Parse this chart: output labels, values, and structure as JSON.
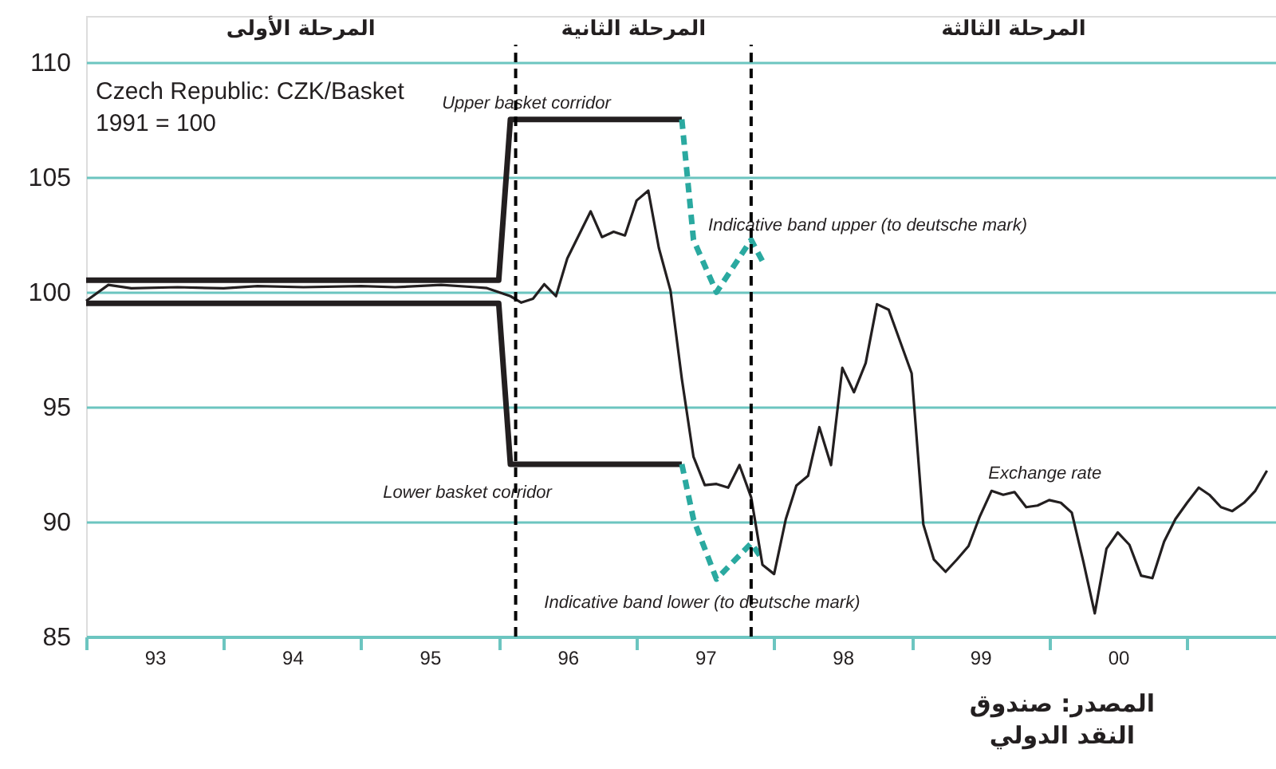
{
  "chart_data": {
    "type": "line",
    "xlim": [
      "1993-01-01",
      "2001-08-25"
    ],
    "ylim": [
      85,
      112
    ],
    "xticks": [
      {
        "value": "1993-01-01",
        "label": null
      },
      {
        "value": "1993-07-02",
        "label": "93"
      },
      {
        "value": "1994-01-01",
        "label": null
      },
      {
        "value": "1994-07-02",
        "label": "94"
      },
      {
        "value": "1995-01-01",
        "label": null
      },
      {
        "value": "1995-07-02",
        "label": "95"
      },
      {
        "value": "1996-01-01",
        "label": null
      },
      {
        "value": "1996-07-02",
        "label": "96"
      },
      {
        "value": "1997-01-01",
        "label": null
      },
      {
        "value": "1997-07-02",
        "label": "97"
      },
      {
        "value": "1998-01-01",
        "label": null
      },
      {
        "value": "1998-07-02",
        "label": "98"
      },
      {
        "value": "1999-01-01",
        "label": null
      },
      {
        "value": "1999-07-02",
        "label": "99"
      },
      {
        "value": "2000-01-01",
        "label": null
      },
      {
        "value": "2000-07-02",
        "label": "00"
      },
      {
        "value": "2001-01-01",
        "label": null
      }
    ],
    "yticks": [
      85,
      90,
      95,
      100,
      105,
      110
    ],
    "grid": "y",
    "marker": "none",
    "series": [
      {
        "name": "Upper basket corridor",
        "color": "#231f20",
        "line_style": "solid",
        "x": [
          "1993-01",
          "1996-01",
          "1996-02",
          "1997-05"
        ],
        "values": [
          100.5,
          100.5,
          107.5,
          107.5
        ]
      },
      {
        "name": "Lower basket corridor",
        "color": "#231f20",
        "line_style": "solid",
        "x": [
          "1993-01",
          "1996-01",
          "1996-02",
          "1997-05"
        ],
        "values": [
          99.5,
          99.5,
          92.5,
          92.5
        ]
      },
      {
        "name": "Indicative band upper (to deutsche mark)",
        "color": "#2aa9a0",
        "line_style": "dashed",
        "x": [
          "1997-05",
          "1997-06",
          "1997-08",
          "1997-11",
          "1997-12"
        ],
        "values": [
          107.5,
          102.26,
          99.98,
          102.26,
          101.33
        ]
      },
      {
        "name": "Indicative band lower (to deutsche mark)",
        "color": "#2aa9a0",
        "line_style": "dashed",
        "x": [
          "1997-05",
          "1997-06",
          "1997-08",
          "1997-11",
          "1997-12"
        ],
        "values": [
          92.5,
          90.1,
          87.5,
          89.06,
          88.36
        ]
      },
      {
        "name": "Exchange rate",
        "color": "#231f20",
        "line_style": "solid",
        "x": [
          "1993-01",
          "1993-03",
          "1993-05",
          "1993-09",
          "1994-01",
          "1994-04",
          "1994-08",
          "1995-01",
          "1995-04",
          "1995-08",
          "1995-11",
          "1995-12",
          "1996-02",
          "1996-03",
          "1996-04",
          "1996-05",
          "1996-06",
          "1996-07",
          "1996-09",
          "1996-10",
          "1996-11",
          "1996-12",
          "1997-01",
          "1997-02",
          "1997-03",
          "1997-04",
          "1997-05",
          "1997-06",
          "1997-07",
          "1997-08",
          "1997-09",
          "1997-10",
          "1997-11",
          "1997-12",
          "1998-01",
          "1998-02",
          "1998-03",
          "1998-04",
          "1998-05",
          "1998-06",
          "1998-07",
          "1998-08",
          "1998-09",
          "1998-10",
          "1998-11",
          "1998-12",
          "1999-01",
          "1999-02",
          "1999-03",
          "1999-04",
          "1999-05",
          "1999-06",
          "1999-07",
          "1999-08",
          "1999-09",
          "1999-10",
          "1999-11",
          "1999-12",
          "2000-01",
          "2000-02",
          "2000-03",
          "2000-04",
          "2000-05",
          "2000-06",
          "2000-07",
          "2000-08",
          "2000-09",
          "2000-10",
          "2000-11",
          "2000-12",
          "2001-01",
          "2001-02",
          "2001-03",
          "2001-04",
          "2001-05",
          "2001-06",
          "2001-07",
          "2001-08"
        ],
        "values": [
          99.6,
          100.3,
          100.15,
          100.2,
          100.15,
          100.25,
          100.2,
          100.25,
          100.2,
          100.3,
          100.2,
          100.16,
          99.81,
          99.53,
          99.7,
          100.33,
          99.81,
          101.45,
          103.5,
          102.38,
          102.61,
          102.45,
          103.97,
          104.4,
          101.91,
          100.05,
          96.22,
          92.82,
          91.59,
          91.64,
          91.48,
          92.46,
          91.06,
          88.12,
          87.72,
          90.11,
          91.57,
          91.99,
          94.11,
          92.46,
          96.69,
          95.63,
          96.9,
          99.46,
          99.22,
          97.86,
          96.45,
          89.88,
          88.35,
          87.82,
          88.35,
          88.94,
          90.23,
          91.34,
          91.17,
          91.29,
          90.63,
          90.7,
          90.94,
          90.82,
          90.39,
          88.24,
          86.01,
          88.82,
          89.53,
          88.99,
          87.65,
          87.54,
          89.13,
          90.11,
          90.82,
          91.48,
          91.17,
          90.63,
          90.46,
          90.82,
          91.34,
          92.22
        ]
      }
    ],
    "ref_lines": [
      {
        "axis": "x",
        "value": "1996-02-15",
        "label": null,
        "color": "#000000",
        "line_style": "dashed"
      },
      {
        "axis": "x",
        "value": "1997-11-01",
        "label": null,
        "color": "#000000",
        "line_style": "dashed"
      }
    ],
    "annotations": [
      "المرحلة الأولى",
      "المرحلة الثانية",
      "المرحلة الثالثة",
      "Czech Republic: CZK/Basket",
      "1991 = 100",
      "المصدر: صندوق النقد الدولي"
    ]
  }
}
